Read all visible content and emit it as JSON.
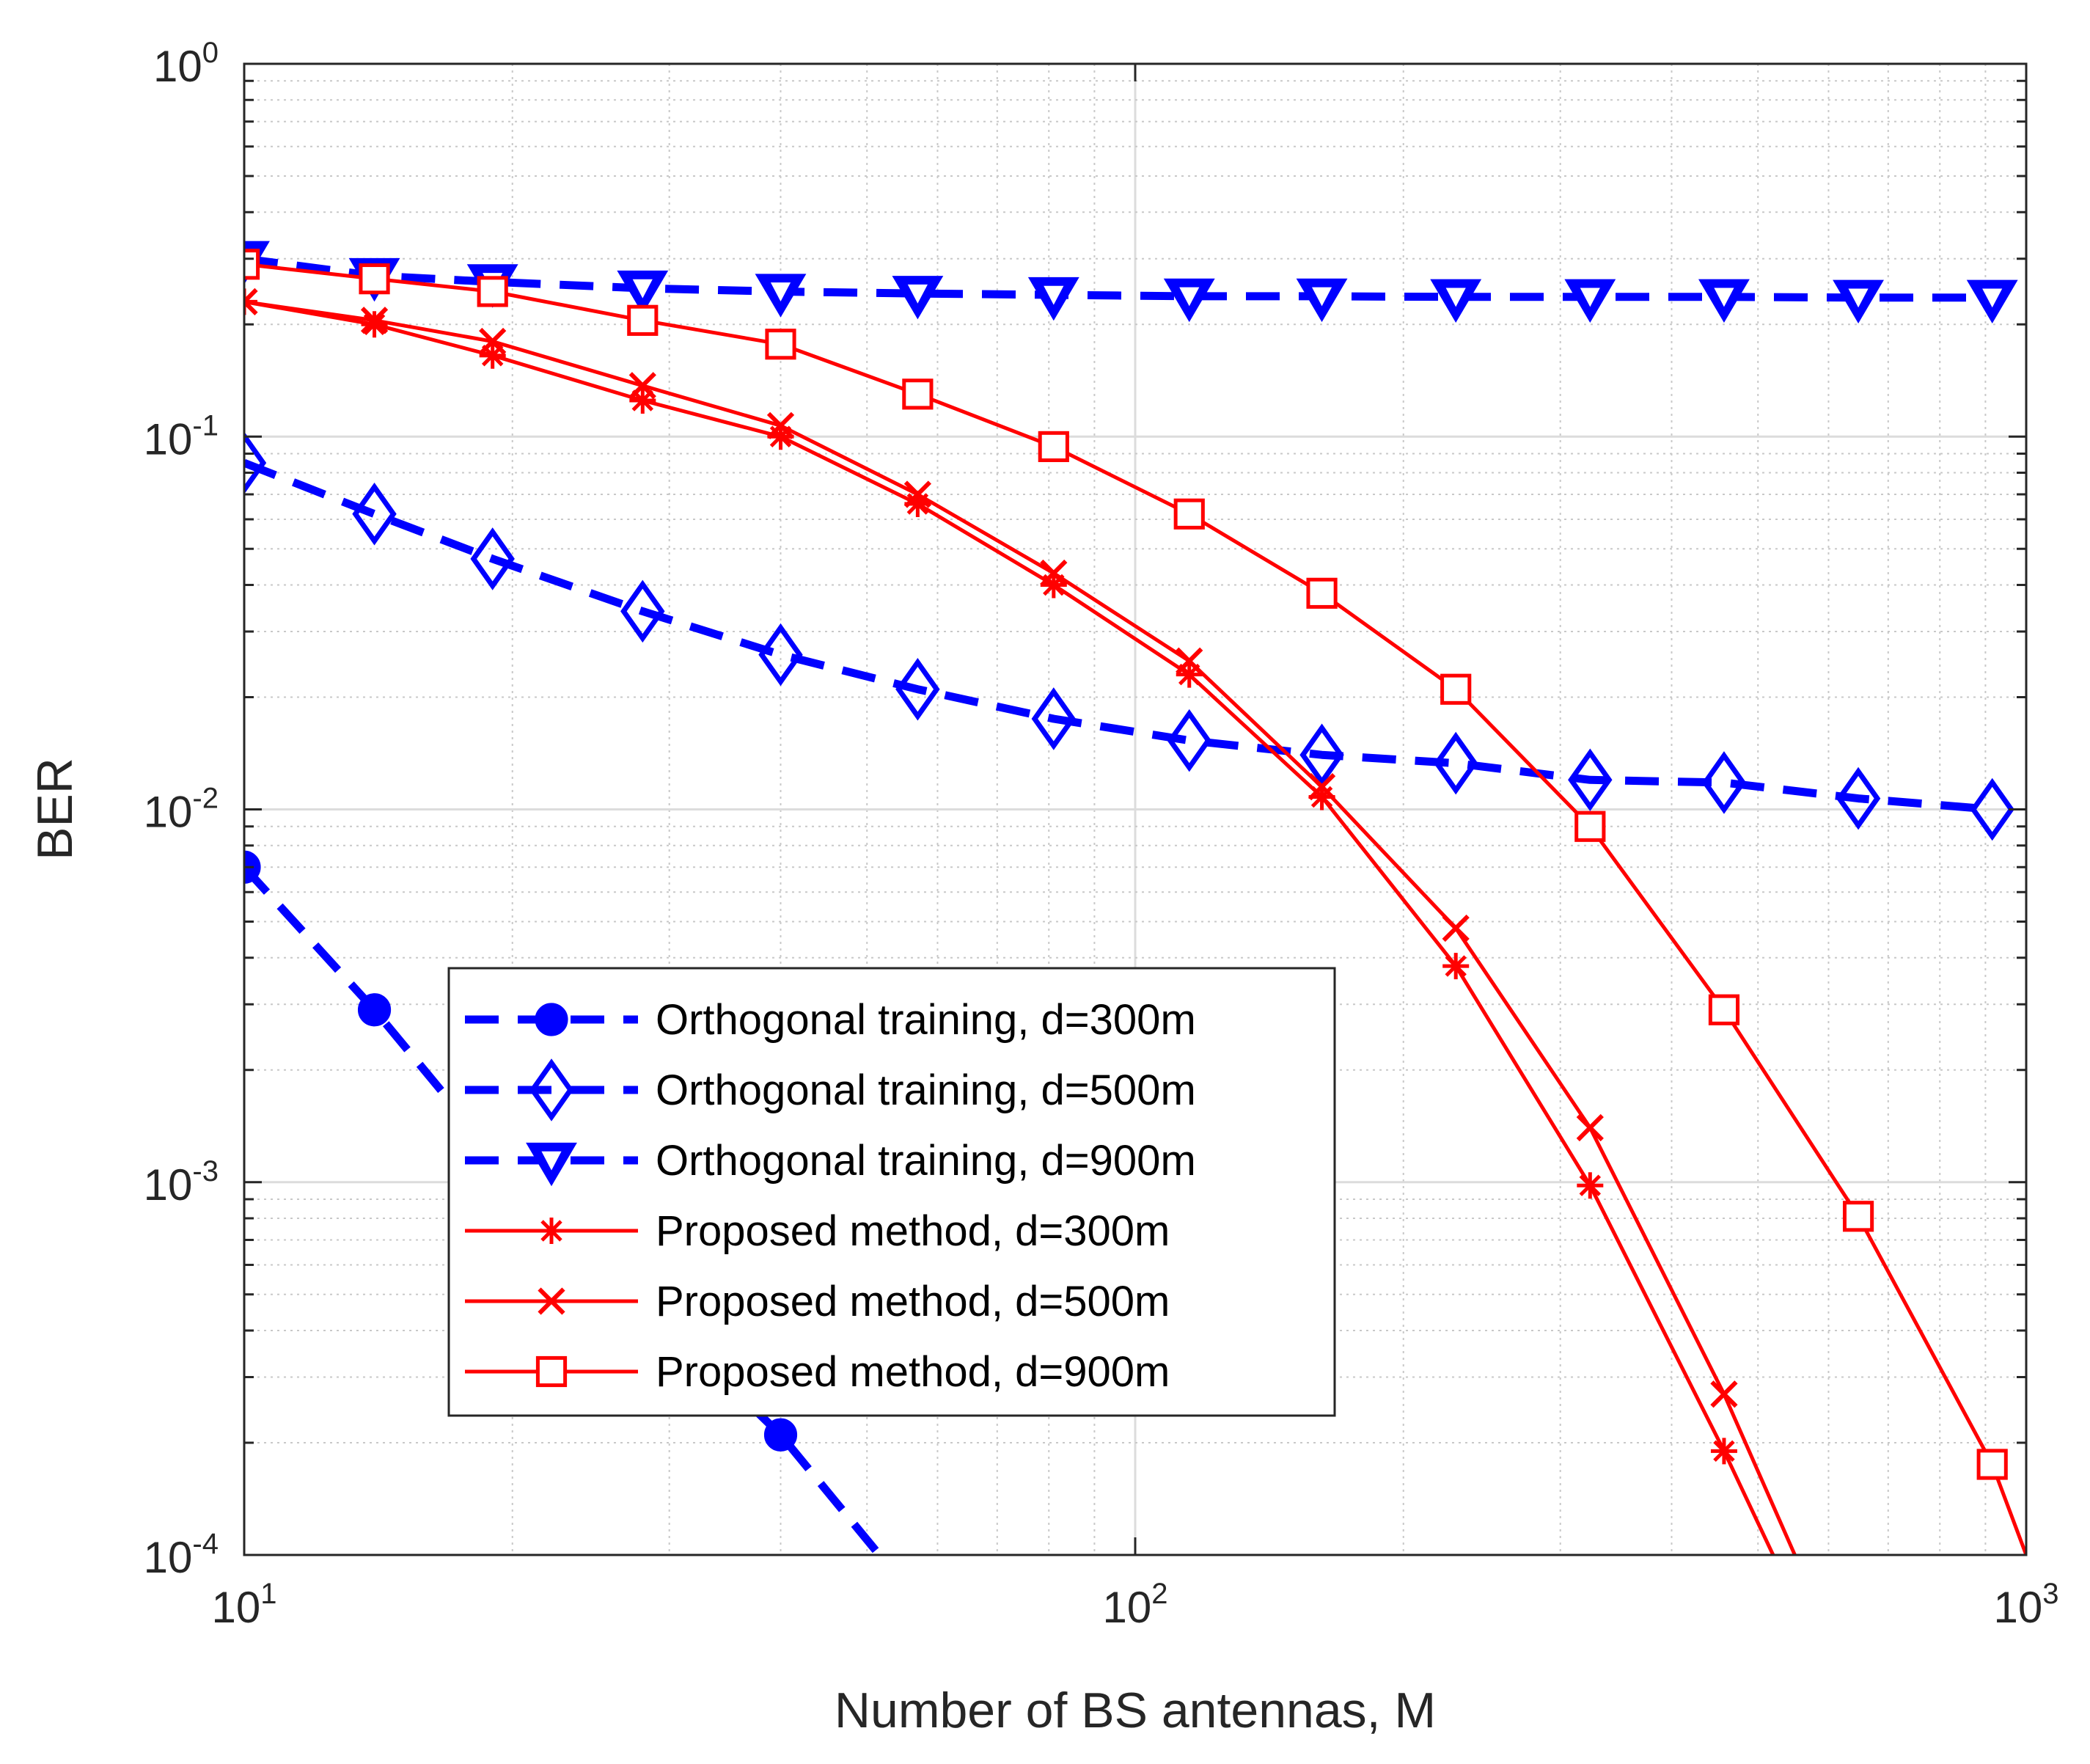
{
  "chart_data": {
    "type": "line",
    "title": "",
    "xlabel": "Number of BS antennas, M",
    "ylabel": "BER",
    "xscale": "log",
    "yscale": "log",
    "xlim": [
      10,
      1000
    ],
    "ylim": [
      0.0001,
      1
    ],
    "xticks": [
      {
        "value": 10,
        "base": "10",
        "exp": "1"
      },
      {
        "value": 100,
        "base": "10",
        "exp": "2"
      },
      {
        "value": 1000,
        "base": "10",
        "exp": "3"
      }
    ],
    "yticks": [
      {
        "value": 1,
        "base": "10",
        "exp": "0"
      },
      {
        "value": 0.1,
        "base": "10",
        "exp": "-1"
      },
      {
        "value": 0.01,
        "base": "10",
        "exp": "-2"
      },
      {
        "value": 0.001,
        "base": "10",
        "exp": "-3"
      },
      {
        "value": 0.0001,
        "base": "10",
        "exp": "-4"
      }
    ],
    "grid": true,
    "minor_grid": true,
    "legend_position": "lower-left-center",
    "series": [
      {
        "name": "Orthogonal training, d=300m",
        "color": "#0000ff",
        "line": "dashed",
        "marker": "circle",
        "x": [
          10,
          14,
          19,
          28,
          40,
          57
        ],
        "y": [
          0.007,
          0.0029,
          0.0012,
          0.00048,
          0.00021,
          7.5e-05
        ]
      },
      {
        "name": "Orthogonal training, d=500m",
        "color": "#0000ff",
        "line": "dashed",
        "marker": "diamond",
        "x": [
          10,
          14,
          19,
          28,
          40,
          57,
          81,
          115,
          162,
          229,
          324,
          458,
          648,
          916
        ],
        "y": [
          0.085,
          0.062,
          0.047,
          0.034,
          0.026,
          0.021,
          0.0175,
          0.0153,
          0.014,
          0.0133,
          0.012,
          0.0118,
          0.0107,
          0.01
        ]
      },
      {
        "name": "Orthogonal training, d=900m",
        "color": "#0000ff",
        "line": "dashed",
        "marker": "triangle-down",
        "x": [
          10,
          14,
          19,
          28,
          40,
          57,
          81,
          115,
          162,
          229,
          324,
          458,
          648,
          916
        ],
        "y": [
          0.3,
          0.27,
          0.26,
          0.25,
          0.245,
          0.242,
          0.24,
          0.238,
          0.238,
          0.237,
          0.237,
          0.237,
          0.236,
          0.236
        ]
      },
      {
        "name": "Proposed method, d=300m",
        "color": "#ff0000",
        "line": "solid",
        "marker": "asterisk",
        "x": [
          10,
          14,
          19,
          28,
          40,
          57,
          81,
          115,
          162,
          229,
          324,
          458,
          520
        ],
        "y": [
          0.23,
          0.2,
          0.165,
          0.125,
          0.1,
          0.066,
          0.04,
          0.023,
          0.0108,
          0.0038,
          0.00098,
          0.00019,
          0.0001
        ]
      },
      {
        "name": "Proposed method, d=500m",
        "color": "#ff0000",
        "line": "solid",
        "marker": "x",
        "x": [
          10,
          14,
          19,
          28,
          40,
          57,
          81,
          115,
          162,
          229,
          324,
          458,
          550
        ],
        "y": [
          0.23,
          0.205,
          0.18,
          0.137,
          0.107,
          0.07,
          0.043,
          0.025,
          0.0115,
          0.0048,
          0.0014,
          0.00027,
          0.0001
        ]
      },
      {
        "name": "Proposed method, d=900m",
        "color": "#ff0000",
        "line": "solid",
        "marker": "square",
        "x": [
          10,
          14,
          19,
          28,
          40,
          57,
          81,
          115,
          162,
          229,
          324,
          458,
          648,
          916,
          1000
        ],
        "y": [
          0.29,
          0.265,
          0.245,
          0.205,
          0.177,
          0.13,
          0.094,
          0.062,
          0.038,
          0.021,
          0.009,
          0.0029,
          0.00081,
          0.000175,
          0.0001
        ]
      }
    ]
  }
}
